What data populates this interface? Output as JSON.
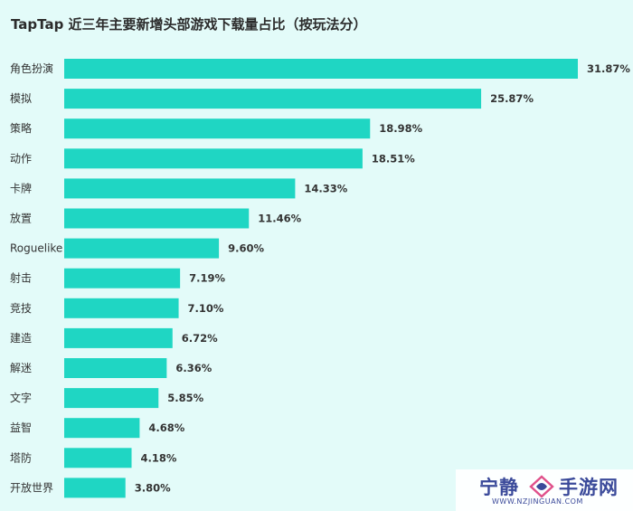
{
  "chart_data": {
    "type": "bar",
    "orientation": "horizontal",
    "title": "TapTap 近三年主要新增头部游戏下载量占比（按玩法分）",
    "categories": [
      "角色扮演",
      "模拟",
      "策略",
      "动作",
      "卡牌",
      "放置",
      "Roguelike",
      "射击",
      "竞技",
      "建造",
      "解迷",
      "文字",
      "益智",
      "塔防",
      "开放世界"
    ],
    "values": [
      31.87,
      25.87,
      18.98,
      18.51,
      14.33,
      11.46,
      9.6,
      7.19,
      7.1,
      6.72,
      6.36,
      5.85,
      4.68,
      4.18,
      3.8
    ],
    "value_labels": [
      "31.87%",
      "25.87%",
      "18.98%",
      "18.51%",
      "14.33%",
      "11.46%",
      "9.60%",
      "7.19%",
      "7.10%",
      "6.72%",
      "6.36%",
      "5.85%",
      "4.68%",
      "4.18%",
      "3.80%"
    ],
    "unit": "%",
    "xlim": [
      0,
      31.87
    ],
    "xlabel": "",
    "ylabel": "",
    "grid": false,
    "bar_color": "#1fd6c3",
    "background_color": "#e3fbf9"
  },
  "watermark": {
    "left_text": "宁静",
    "right_text": "手游网",
    "url": "WWW.NZJINGUAN.COM",
    "logo_icon": "diamond-swirl-icon",
    "color": "#3b4a9a",
    "accent_color": "#e0508a"
  }
}
